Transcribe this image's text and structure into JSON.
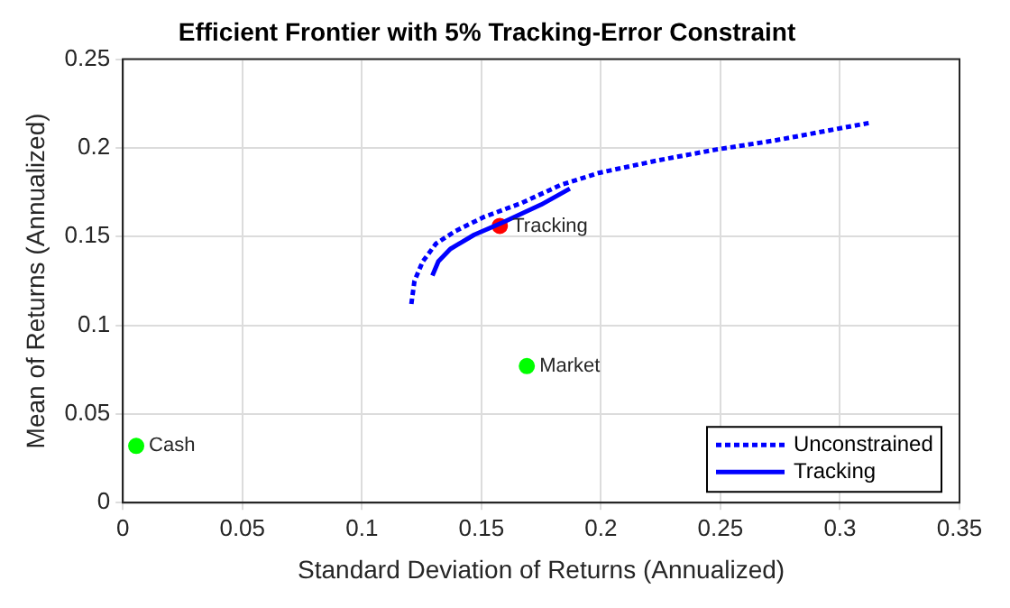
{
  "chart_data": {
    "type": "line",
    "title": "Efficient Frontier with 5% Tracking-Error Constraint",
    "xlabel": "Standard Deviation of Returns (Annualized)",
    "ylabel": "Mean of Returns (Annualized)",
    "xlim": [
      0,
      0.35
    ],
    "xticks": [
      0,
      0.05,
      0.1,
      0.15,
      0.2,
      0.25,
      0.3,
      0.35
    ],
    "ylim": [
      0,
      0.25
    ],
    "yticks": [
      0,
      0.05,
      0.1,
      0.15,
      0.2,
      0.25
    ],
    "grid": true,
    "legend": "bottom right",
    "series": [
      {
        "name": "Unconstrained",
        "line_style": "dotted",
        "color": "#0000ff",
        "x": [
          0.1207,
          0.122,
          0.1255,
          0.131,
          0.139,
          0.151,
          0.167,
          0.183,
          0.1995,
          0.224,
          0.248,
          0.272,
          0.296,
          0.312
        ],
        "values": [
          0.112,
          0.125,
          0.136,
          0.146,
          0.153,
          0.161,
          0.169,
          0.179,
          0.186,
          0.193,
          0.199,
          0.204,
          0.21,
          0.214
        ]
      },
      {
        "name": "Tracking",
        "line_style": "solid",
        "color": "#0000ff",
        "x": [
          0.1295,
          0.132,
          0.137,
          0.147,
          0.159,
          0.175,
          0.187
        ],
        "values": [
          0.128,
          0.136,
          0.143,
          0.151,
          0.158,
          0.168,
          0.177
        ]
      },
      {
        "type": "scatter",
        "marker": "circle",
        "colors": [
          "#ff0000",
          "#00ff00",
          "#00ff00"
        ],
        "x": [
          0.1577,
          0.169,
          0.0056
        ],
        "values": [
          0.156,
          0.077,
          0.032
        ]
      }
    ],
    "annotations": [
      {
        "text": "Tracking",
        "x": 0.1577,
        "y": 0.156
      },
      {
        "text": "Market",
        "x": 0.169,
        "y": 0.077
      },
      {
        "text": "Cash",
        "x": 0.0056,
        "y": 0.032
      }
    ]
  }
}
